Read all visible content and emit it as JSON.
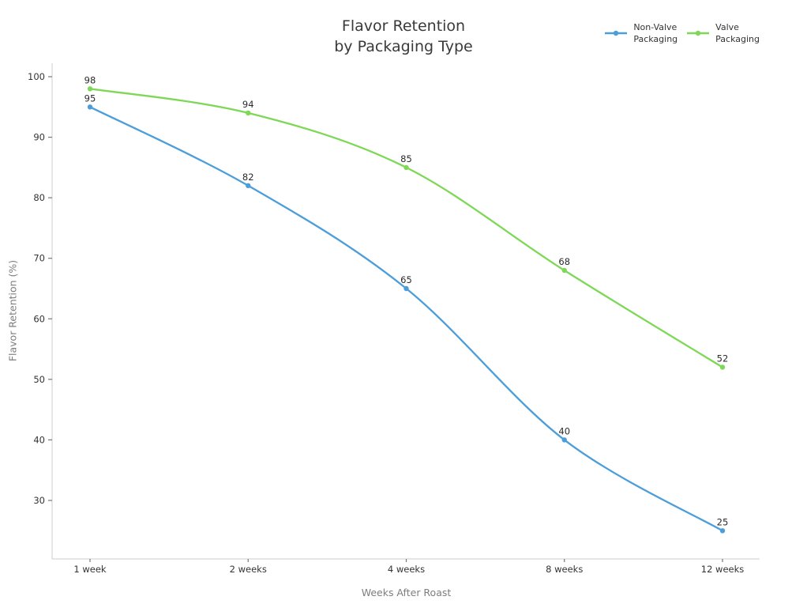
{
  "figure": {
    "title_line1": "Flavor Retention",
    "title_line2": "by Packaging Type",
    "background_color": "#ffffff",
    "title_color": "#3a3a3a"
  },
  "chart_data": {
    "type": "line",
    "title": "Flavor Retention by Packaging Type",
    "xlabel": "Weeks After Roast",
    "ylabel": "Flavor Retention (%)",
    "categories": [
      "1 week",
      "2 weeks",
      "4 weeks",
      "8 weeks",
      "12 weeks"
    ],
    "series": [
      {
        "name": "Non-Valve Packaging",
        "name_lines": [
          "Non-Valve",
          "Packaging"
        ],
        "color": "#4c9edb",
        "values": [
          95,
          82,
          65,
          40,
          25
        ]
      },
      {
        "name": "Valve Packaging",
        "name_lines": [
          "Valve",
          "Packaging"
        ],
        "color": "#7ed857",
        "values": [
          98,
          94,
          85,
          68,
          52
        ]
      }
    ],
    "yticks": [
      30,
      40,
      50,
      60,
      70,
      80,
      90,
      100
    ],
    "ylim": [
      20,
      103
    ],
    "grid": false,
    "legend_position": "top-right",
    "line_shape": "spline",
    "data_labels_shown": true,
    "axis_line_color": "#d6d6d6",
    "tick_mark_color": "#777777",
    "tick_label_color": "#333333",
    "data_label_color": "#2a2a2a"
  }
}
